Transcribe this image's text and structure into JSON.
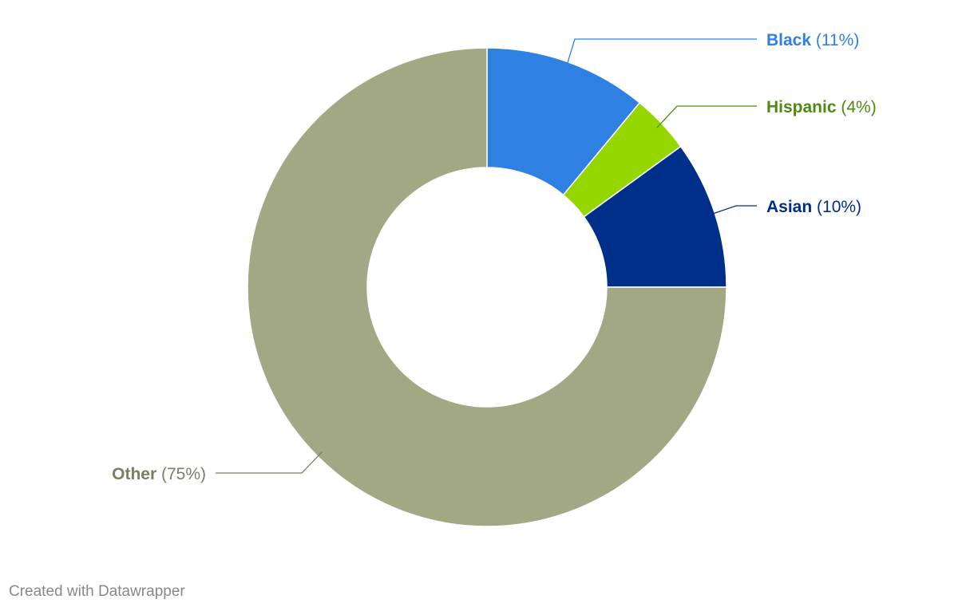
{
  "chart_data": {
    "type": "pie",
    "donut": true,
    "categories": [
      "Black",
      "Hispanic",
      "Asian",
      "Other"
    ],
    "values": [
      11,
      4,
      10,
      75
    ],
    "value_labels": [
      "(11%)",
      "(4%)",
      "(10%)",
      "(75%)"
    ],
    "colors": [
      "#2f80e3",
      "#96d600",
      "#002f8a",
      "#a2a883"
    ],
    "label_colors": [
      "#2f80e3",
      "#4f8a10",
      "#002f8a",
      "#7b7f62"
    ],
    "unit": "%"
  },
  "footer": {
    "credit": "Created with Datawrapper"
  }
}
